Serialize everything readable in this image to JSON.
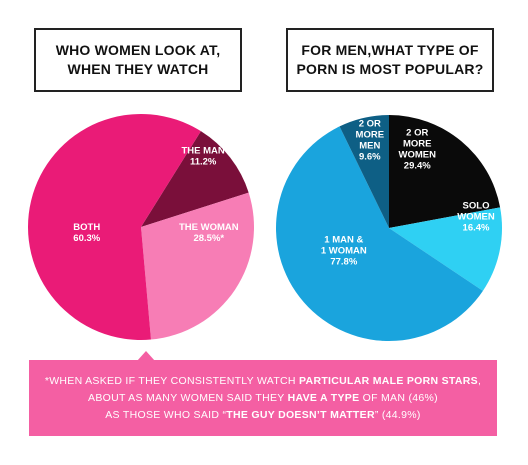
{
  "chart_data": [
    {
      "type": "pie",
      "title_lines": [
        "WHO WOMEN LOOK AT,",
        "WHEN THEY WATCH"
      ],
      "slices": [
        {
          "label_lines": [
            "THE MAN"
          ],
          "value": 11.2,
          "value_text": "11.2%",
          "color": "#7a0f3a"
        },
        {
          "label_lines": [
            "THE WOMAN"
          ],
          "value": 28.5,
          "value_text": "28.5%*",
          "color": "#f77db5"
        },
        {
          "label_lines": [
            "BOTH"
          ],
          "value": 60.3,
          "value_text": "60.3%",
          "color": "#ea1b77"
        }
      ]
    },
    {
      "type": "pie",
      "title_lines": [
        "FOR MEN,WHAT TYPE OF",
        "PORN IS MOST POPULAR?"
      ],
      "slices": [
        {
          "label_lines": [
            "2 OR",
            "MORE",
            "WOMEN"
          ],
          "value": 29.4,
          "value_text": "29.4%",
          "color": "#0a0a0a"
        },
        {
          "label_lines": [
            "SOLO",
            "WOMEN"
          ],
          "value": 16.4,
          "value_text": "16.4%",
          "color": "#2fd0f3"
        },
        {
          "label_lines": [
            "1 MAN &",
            "1 WOMAN"
          ],
          "value": 77.8,
          "value_text": "77.8%",
          "color": "#1aa4dd"
        },
        {
          "label_lines": [
            "2 OR",
            "MORE",
            "MEN"
          ],
          "value": 9.6,
          "value_text": "9.6%",
          "color": "#0e5f85"
        }
      ]
    }
  ],
  "footnote": {
    "line1_pre": "*WHEN ASKED IF THEY CONSISTENTLY WATCH ",
    "line1_bold": "PARTICULAR MALE PORN STARS",
    "line1_post": ",",
    "line2_pre": "ABOUT AS MANY WOMEN SAID THEY ",
    "line2_bold": "HAVE A TYPE",
    "line2_post": " OF MAN (46%)",
    "line3_pre": "AS THOSE WHO SAID “",
    "line3_bold": "THE GUY DOESN’T MATTER",
    "line3_post": "” (44.9%)"
  },
  "colors": {
    "pink": "#f45fa3",
    "border": "#222222"
  }
}
